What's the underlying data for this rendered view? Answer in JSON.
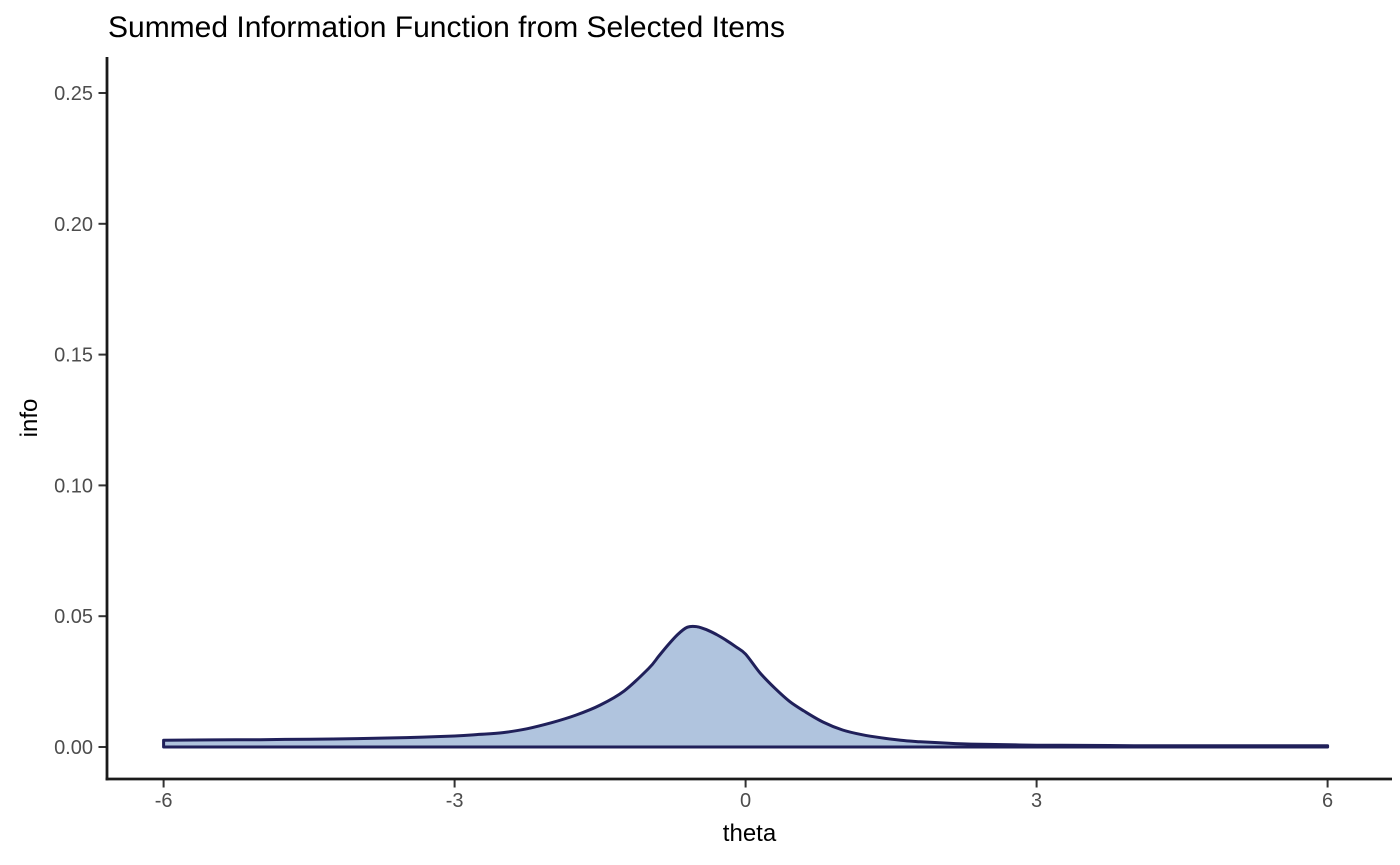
{
  "chart_data": {
    "type": "area",
    "title": "Summed Information Function from Selected Items",
    "xlabel": "theta",
    "ylabel": "info",
    "xlim": [
      -6,
      6
    ],
    "ylim": [
      0,
      0.25
    ],
    "grid": false,
    "legend": "none",
    "x_ticks": {
      "values": [
        -6,
        -3,
        0,
        3,
        6
      ],
      "labels": [
        "-6",
        "-3",
        "0",
        "3",
        "6"
      ]
    },
    "y_ticks": {
      "values": [
        0,
        0.05,
        0.1,
        0.15,
        0.2,
        0.25
      ],
      "labels": [
        "0.00",
        "0.05",
        "0.10",
        "0.15",
        "0.20",
        "0.25"
      ]
    },
    "series": [
      {
        "name": "info",
        "points": [
          [
            -6.0,
            0.0026
          ],
          [
            -5.5,
            0.0027
          ],
          [
            -5.0,
            0.0028
          ],
          [
            -4.5,
            0.003
          ],
          [
            -4.0,
            0.0032
          ],
          [
            -3.5,
            0.0036
          ],
          [
            -3.0,
            0.0042
          ],
          [
            -2.75,
            0.0048
          ],
          [
            -2.5,
            0.0055
          ],
          [
            -2.25,
            0.007
          ],
          [
            -2.0,
            0.0093
          ],
          [
            -1.75,
            0.0122
          ],
          [
            -1.5,
            0.016
          ],
          [
            -1.25,
            0.0215
          ],
          [
            -1.0,
            0.03
          ],
          [
            -0.9,
            0.0345
          ],
          [
            -0.8,
            0.039
          ],
          [
            -0.7,
            0.043
          ],
          [
            -0.6,
            0.0458
          ],
          [
            -0.5,
            0.046
          ],
          [
            -0.4,
            0.0448
          ],
          [
            -0.3,
            0.043
          ],
          [
            -0.2,
            0.0408
          ],
          [
            -0.1,
            0.0383
          ],
          [
            0.0,
            0.0355
          ],
          [
            0.15,
            0.0283
          ],
          [
            0.3,
            0.0225
          ],
          [
            0.45,
            0.0175
          ],
          [
            0.6,
            0.0138
          ],
          [
            0.8,
            0.0095
          ],
          [
            1.0,
            0.0065
          ],
          [
            1.2,
            0.0047
          ],
          [
            1.4,
            0.0035
          ],
          [
            1.6,
            0.0026
          ],
          [
            1.8,
            0.002
          ],
          [
            2.0,
            0.0016
          ],
          [
            2.25,
            0.0012
          ],
          [
            2.5,
            0.001
          ],
          [
            3.0,
            0.0007
          ],
          [
            3.5,
            0.0006
          ],
          [
            4.0,
            0.0005
          ],
          [
            4.5,
            0.0005
          ],
          [
            5.0,
            0.0005
          ],
          [
            5.5,
            0.0005
          ],
          [
            6.0,
            0.0005
          ]
        ]
      }
    ],
    "colors": {
      "area_fill": "#b0c4de",
      "area_stroke": "#20205a",
      "axis_line": "#1a1a1a",
      "tick_mark": "#333333",
      "tick_label": "#4d4d4d",
      "title_text": "#000000",
      "background": "#ffffff"
    }
  }
}
